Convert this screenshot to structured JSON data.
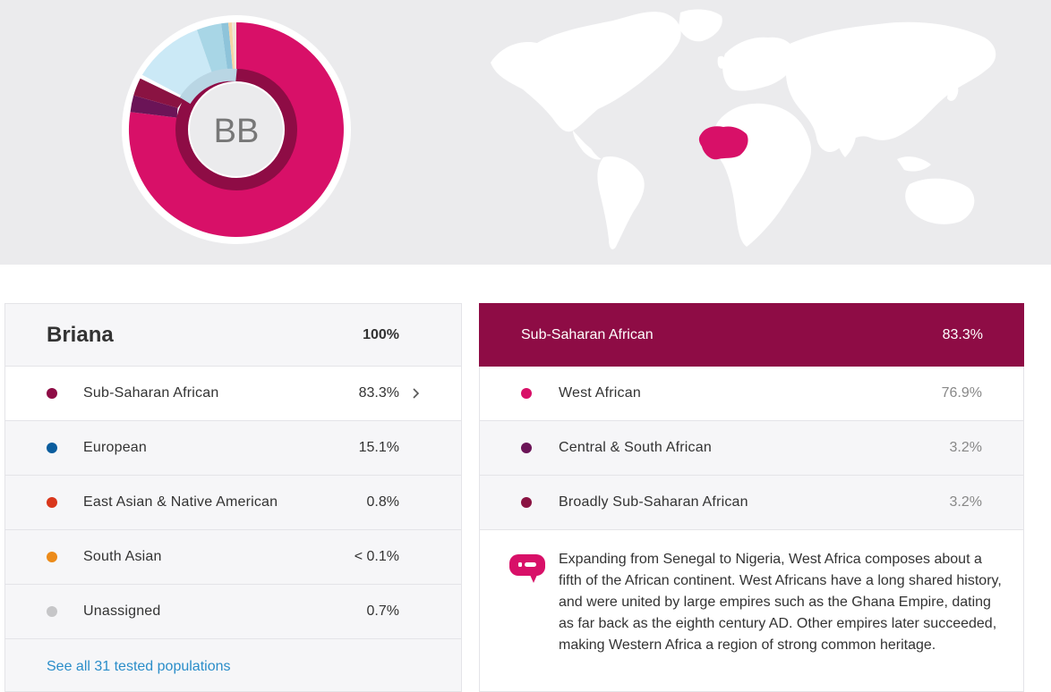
{
  "avatar_initials": "BB",
  "colors": {
    "sub_saharan": "#8e0c45",
    "west_african": "#d81068",
    "central_south": "#6b1457",
    "broadly": "#8a1342",
    "european": "#0a5d9e",
    "east_asian": "#d9371c",
    "south_asian": "#ec8b1a",
    "unassigned": "#c6c6c8",
    "link": "#2a8dc9"
  },
  "left_panel": {
    "name": "Briana",
    "total": "100%",
    "rows": [
      {
        "label": "Sub-Saharan African",
        "pct": "83.3%",
        "color": "#8e0c45",
        "icon": "chevron-right-icon"
      },
      {
        "label": "European",
        "pct": "15.1%",
        "color": "#0a5d9e"
      },
      {
        "label": "East Asian & Native American",
        "pct": "0.8%",
        "color": "#d9371c"
      },
      {
        "label": "South Asian",
        "pct": "< 0.1%",
        "color": "#ec8b1a"
      },
      {
        "label": "Unassigned",
        "pct": "0.7%",
        "color": "#c6c6c8"
      }
    ],
    "see_all": "See all 31 tested populations"
  },
  "right_panel": {
    "title": "Sub-Saharan African",
    "pct": "83.3%",
    "rows": [
      {
        "label": "West African",
        "pct": "76.9%",
        "color": "#d81068"
      },
      {
        "label": "Central & South African",
        "pct": "3.2%",
        "color": "#6b1457"
      },
      {
        "label": "Broadly Sub-Saharan African",
        "pct": "3.2%",
        "color": "#8a1342"
      }
    ],
    "description": "Expanding from Senegal to Nigeria, West Africa composes about a fifth of the African continent. West Africans have a long shared history, and were united by large empires such as the Ghana Empire, dating as far back as the eighth century AD. Other empires later succeeded, making Western Africa a region of strong common heritage.",
    "description_icon": "chat-bubble-icon"
  }
}
